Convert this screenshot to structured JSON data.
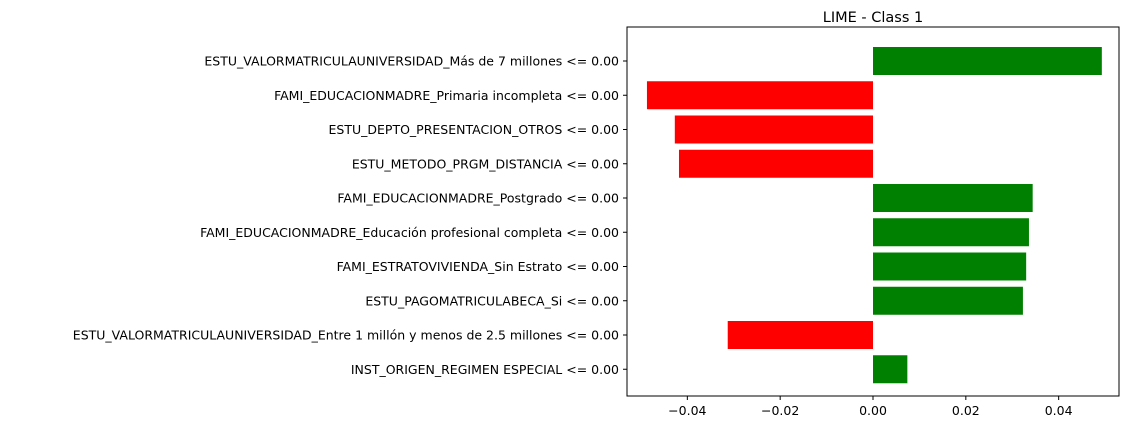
{
  "chart_data": {
    "type": "bar",
    "orientation": "horizontal",
    "title": "LIME - Class 1",
    "xlabel": "",
    "ylabel": "",
    "xlim": [
      -0.053,
      0.053
    ],
    "grid": false,
    "legend": "none",
    "colors": {
      "positive": "#008000",
      "negative": "#ff0000"
    },
    "categories": [
      "ESTU_VALORMATRICULAUNIVERSIDAD_Más de 7 millones <= 0.00",
      "FAMI_EDUCACIONMADRE_Primaria incompleta <= 0.00",
      "ESTU_DEPTO_PRESENTACION_OTROS <= 0.00",
      "ESTU_METODO_PRGM_DISTANCIA <= 0.00",
      "FAMI_EDUCACIONMADRE_Postgrado <= 0.00",
      "FAMI_EDUCACIONMADRE_Educación profesional completa <= 0.00",
      "FAMI_ESTRATOVIVIENDA_Sin Estrato <= 0.00",
      "ESTU_PAGOMATRICULABECA_Si <= 0.00",
      "ESTU_VALORMATRICULAUNIVERSIDAD_Entre 1 millón y menos de 2.5 millones <= 0.00",
      "INST_ORIGEN_REGIMEN ESPECIAL <= 0.00"
    ],
    "values": [
      0.0493,
      -0.0487,
      -0.0427,
      -0.0418,
      0.0344,
      0.0336,
      0.033,
      0.0323,
      -0.0313,
      0.0074
    ],
    "xticks": [
      -0.04,
      -0.02,
      0.0,
      0.02,
      0.04
    ],
    "xtick_labels": [
      "−0.04",
      "−0.02",
      "0.00",
      "0.02",
      "0.04"
    ]
  }
}
